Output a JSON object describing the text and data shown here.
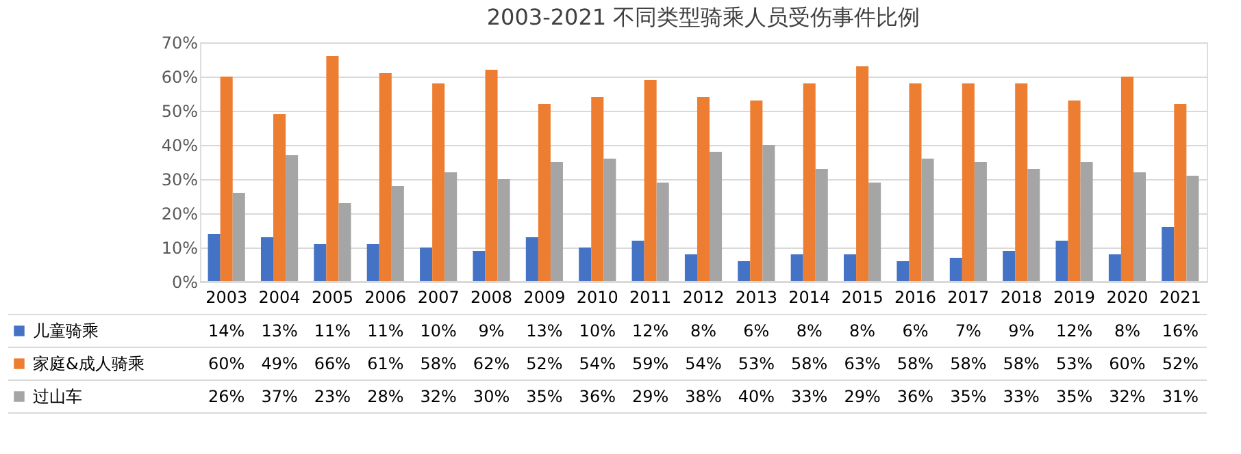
{
  "chart_data": {
    "type": "bar",
    "title": "2003-2021 不同类型骑乘人员受伤事件比例",
    "categories": [
      "2003",
      "2004",
      "2005",
      "2006",
      "2007",
      "2008",
      "2009",
      "2010",
      "2011",
      "2012",
      "2013",
      "2014",
      "2015",
      "2016",
      "2017",
      "2018",
      "2019",
      "2020",
      "2021"
    ],
    "series": [
      {
        "name": "儿童骑乘",
        "color": "#4472c4",
        "values": [
          14,
          13,
          11,
          11,
          10,
          9,
          13,
          10,
          12,
          8,
          6,
          8,
          8,
          6,
          7,
          9,
          12,
          8,
          16
        ],
        "value_labels": [
          "14%",
          "13%",
          "11%",
          "11%",
          "10%",
          "9%",
          "13%",
          "10%",
          "12%",
          "8%",
          "6%",
          "8%",
          "8%",
          "6%",
          "7%",
          "9%",
          "12%",
          "8%",
          "16%"
        ]
      },
      {
        "name": "家庭&成人骑乘",
        "color": "#ed7d31",
        "values": [
          60,
          49,
          66,
          61,
          58,
          62,
          52,
          54,
          59,
          54,
          53,
          58,
          63,
          58,
          58,
          58,
          53,
          60,
          52
        ],
        "value_labels": [
          "60%",
          "49%",
          "66%",
          "61%",
          "58%",
          "62%",
          "52%",
          "54%",
          "59%",
          "54%",
          "53%",
          "58%",
          "63%",
          "58%",
          "58%",
          "58%",
          "53%",
          "60%",
          "52%"
        ]
      },
      {
        "name": "过山车",
        "color": "#a5a5a5",
        "values": [
          26,
          37,
          23,
          28,
          32,
          30,
          35,
          36,
          29,
          38,
          40,
          33,
          29,
          36,
          35,
          33,
          35,
          32,
          31
        ],
        "value_labels": [
          "26%",
          "37%",
          "23%",
          "28%",
          "32%",
          "30%",
          "35%",
          "36%",
          "29%",
          "38%",
          "40%",
          "33%",
          "29%",
          "36%",
          "35%",
          "33%",
          "35%",
          "32%",
          "31%"
        ]
      }
    ],
    "ylim": [
      0,
      70
    ],
    "yticks": [
      {
        "value": 0,
        "label": "0%"
      },
      {
        "value": 10,
        "label": "10%"
      },
      {
        "value": 20,
        "label": "20%"
      },
      {
        "value": 30,
        "label": "30%"
      },
      {
        "value": 40,
        "label": "40%"
      },
      {
        "value": 50,
        "label": "50%"
      },
      {
        "value": 60,
        "label": "60%"
      },
      {
        "value": 70,
        "label": "70%"
      }
    ],
    "grid": "y",
    "legend": "bottom"
  }
}
